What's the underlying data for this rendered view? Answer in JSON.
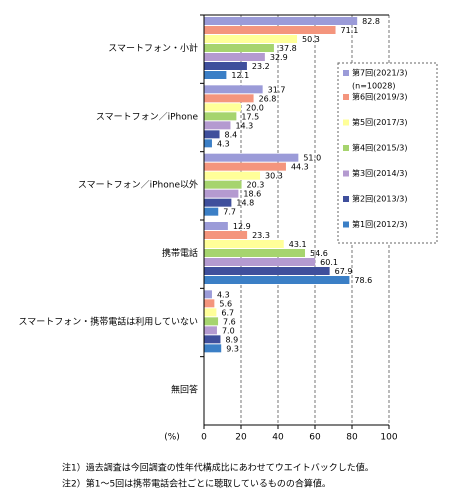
{
  "chart_data": {
    "type": "hbar",
    "x_label": "(%)",
    "categories": [
      "スマートフォン・小計",
      "スマートフォン／iPhone",
      "スマートフォン／iPhone以外",
      "携帯電話",
      "スマートフォン・携帯電話は利用していない",
      "無回答"
    ],
    "series": [
      {
        "name": "第7回(2021/3)",
        "color": "#9b9bd8",
        "values": [
          82.8,
          31.7,
          51.0,
          12.9,
          4.3,
          null
        ],
        "value_labels": [
          "82.8",
          "31.7",
          "51.0",
          "12.9",
          "4.3",
          null
        ]
      },
      {
        "name": "第6回(2019/3)",
        "color": "#f4957d",
        "values": [
          71.1,
          26.8,
          44.3,
          23.3,
          5.6,
          null
        ],
        "value_labels": [
          "71.1",
          "26.8",
          "44.3",
          "23.3",
          "5.6",
          null
        ]
      },
      {
        "name": "第5回(2017/3)",
        "color": "#ffff99",
        "values": [
          50.3,
          20.0,
          30.3,
          43.1,
          6.7,
          null
        ],
        "value_labels": [
          "50.3",
          "20.0",
          "30.3",
          "43.1",
          "6.7",
          null
        ]
      },
      {
        "name": "第4回(2015/3)",
        "color": "#a6d46e",
        "values": [
          37.8,
          17.5,
          20.3,
          54.6,
          7.6,
          null
        ],
        "value_labels": [
          "37.8",
          "17.5",
          "20.3",
          "54.6",
          "7.6",
          null
        ]
      },
      {
        "name": "第3回(2014/3)",
        "color": "#b49ad0",
        "values": [
          32.9,
          14.3,
          18.6,
          60.1,
          7.0,
          null
        ],
        "value_labels": [
          "32.9",
          "14.3",
          "18.6",
          "60.1",
          "7.0",
          null
        ]
      },
      {
        "name": "第2回(2013/3)",
        "color": "#3f4f9c",
        "values": [
          23.2,
          8.4,
          14.8,
          67.9,
          8.9,
          null
        ],
        "value_labels": [
          "23.2",
          "8.4",
          "14.8",
          "67.9",
          "8.9",
          null
        ]
      },
      {
        "name": "第1回(2012/3)",
        "color": "#3b7fc6",
        "values": [
          12.1,
          4.3,
          7.7,
          78.6,
          9.3,
          null
        ],
        "value_labels": [
          "12.1",
          "4.3",
          "7.7",
          "78.6",
          "9.3",
          null
        ]
      }
    ],
    "legend_note": "(n=10028)",
    "xlim": [
      0,
      100
    ],
    "xticks": [
      0,
      20,
      40,
      60,
      80,
      100
    ],
    "grid": true,
    "notes": [
      "注1）過去調査は今回調査の性年代構成比にあわせてウエイトバックした値。",
      "注2）第1～5回は携帯電話会社ごとに聴取しているものの合算値。"
    ]
  }
}
